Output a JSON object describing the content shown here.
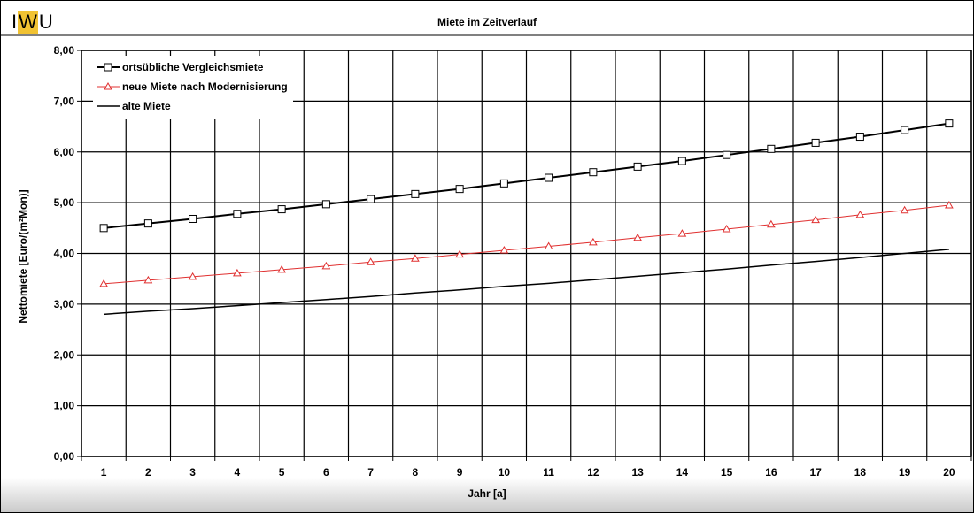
{
  "logo": [
    "I",
    "W",
    "U"
  ],
  "chart_data": {
    "type": "line",
    "title": "Miete im Zeitverlauf",
    "xlabel": "Jahr [a]",
    "ylabel": "Nettomiete [Euro/(m²Mon)]",
    "x": [
      1,
      2,
      3,
      4,
      5,
      6,
      7,
      8,
      9,
      10,
      11,
      12,
      13,
      14,
      15,
      16,
      17,
      18,
      19,
      20
    ],
    "x_tick_labels": [
      "1",
      "2",
      "3",
      "4",
      "5",
      "6",
      "7",
      "8",
      "9",
      "10",
      "11",
      "12",
      "13",
      "14",
      "15",
      "16",
      "17",
      "18",
      "19",
      "20"
    ],
    "y_tick_labels": [
      "0,00",
      "1,00",
      "2,00",
      "3,00",
      "4,00",
      "5,00",
      "6,00",
      "7,00",
      "8,00"
    ],
    "ylim": [
      0,
      8
    ],
    "grid": true,
    "legend_position": "top-left",
    "series": [
      {
        "name": "ortsübliche Vergleichsmiete",
        "color": "#000000",
        "marker": "square",
        "values": [
          4.5,
          4.59,
          4.68,
          4.78,
          4.87,
          4.97,
          5.07,
          5.17,
          5.27,
          5.38,
          5.49,
          5.6,
          5.71,
          5.82,
          5.94,
          6.06,
          6.18,
          6.3,
          6.43,
          6.56
        ]
      },
      {
        "name": "neue Miete nach Modernisierung",
        "color": "#e03030",
        "marker": "triangle",
        "values": [
          3.4,
          3.47,
          3.54,
          3.61,
          3.68,
          3.75,
          3.83,
          3.9,
          3.98,
          4.06,
          4.14,
          4.22,
          4.31,
          4.39,
          4.48,
          4.57,
          4.66,
          4.76,
          4.85,
          4.95
        ]
      },
      {
        "name": "alte Miete",
        "color": "#000000",
        "marker": "none",
        "values": [
          2.8,
          2.86,
          2.91,
          2.97,
          3.03,
          3.09,
          3.15,
          3.22,
          3.28,
          3.35,
          3.41,
          3.48,
          3.55,
          3.62,
          3.69,
          3.77,
          3.84,
          3.92,
          4.0,
          4.08
        ]
      }
    ]
  }
}
